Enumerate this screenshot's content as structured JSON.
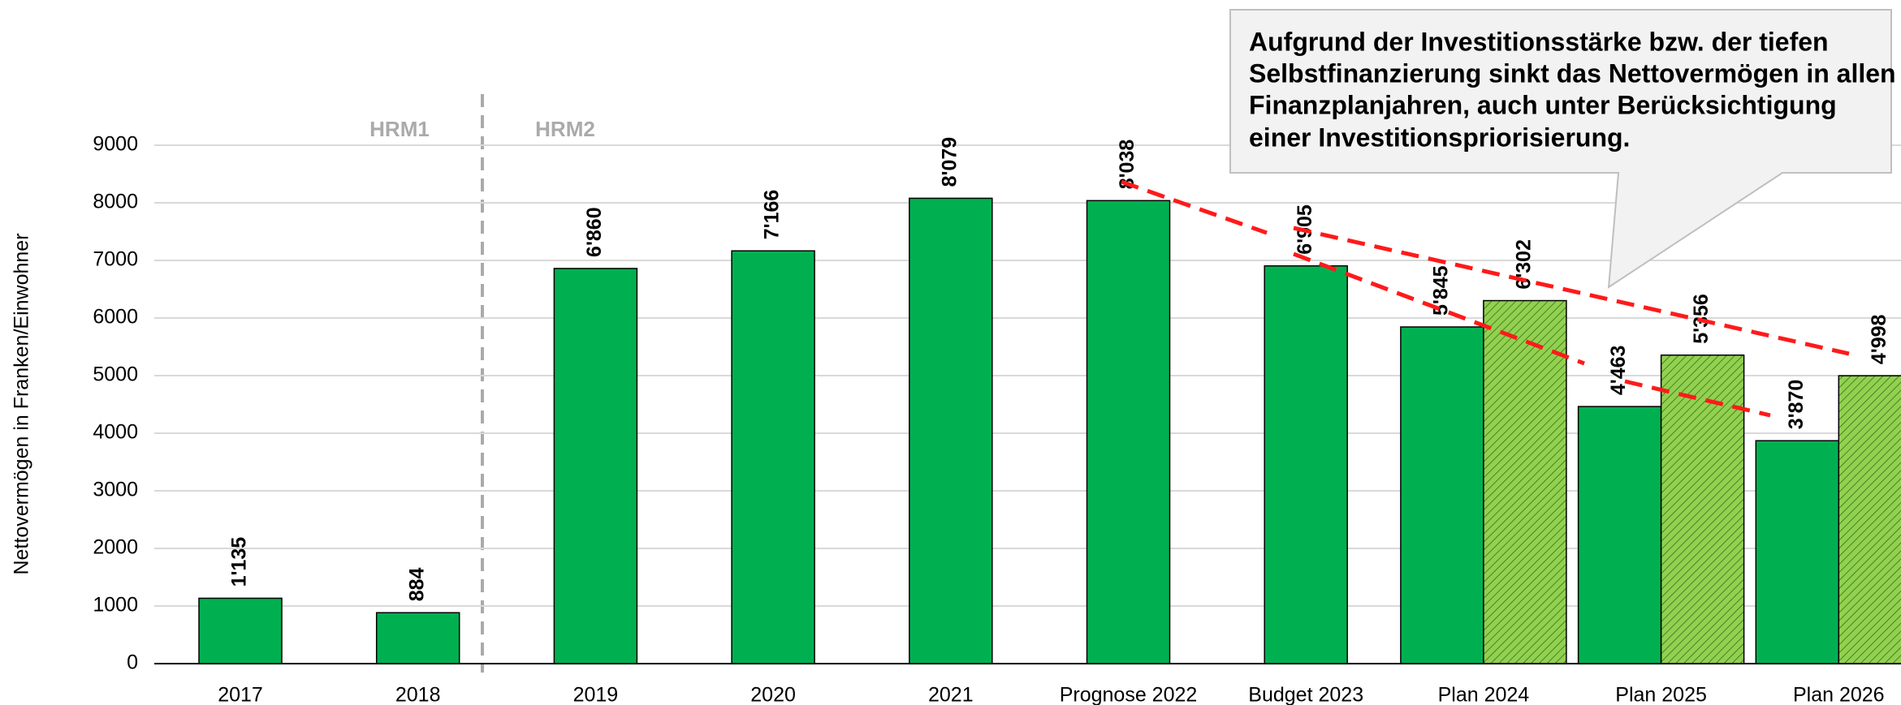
{
  "chart_data": {
    "type": "bar",
    "y_label": "Nettovermögen in Franken/Einwohner",
    "annotations": [
      "HRM1",
      "HRM2"
    ],
    "callout": [
      "Aufgrund der Investitionsstärke bzw. der tiefen",
      "Selbstfinanzierung sinkt das Nettovermögen in allen",
      "Finanzplanjahren, auch unter Berücksichtigung",
      "einer Investitionspriorisierung."
    ],
    "categories": [
      "2017",
      "2018",
      "2019",
      "2020",
      "2021",
      "Prognose 2022",
      "Budget 2023",
      "Plan 2024",
      "Plan 2025",
      "Plan 2026"
    ],
    "series": [
      {
        "color": "#00b050",
        "hatch": false,
        "values": [
          1135,
          884,
          6860,
          7166,
          8079,
          8038,
          6905,
          5845,
          4463,
          3870
        ],
        "value_labels": [
          "1'135",
          "884",
          "6'860",
          "7'166",
          "8'079",
          "8'038",
          "6'905",
          "5'845",
          "4'463",
          "3'870"
        ]
      },
      {
        "color": "#92d050",
        "hatch": true,
        "values": [
          null,
          null,
          null,
          null,
          null,
          null,
          null,
          6302,
          5356,
          4998
        ],
        "value_labels": [
          null,
          null,
          null,
          null,
          null,
          null,
          null,
          "6'302",
          "5'356",
          "4'998"
        ]
      }
    ],
    "ylim": [
      0,
      9000
    ],
    "yticks": [
      0,
      1000,
      2000,
      3000,
      4000,
      5000,
      6000,
      7000,
      8000,
      9000
    ],
    "grid": true
  }
}
